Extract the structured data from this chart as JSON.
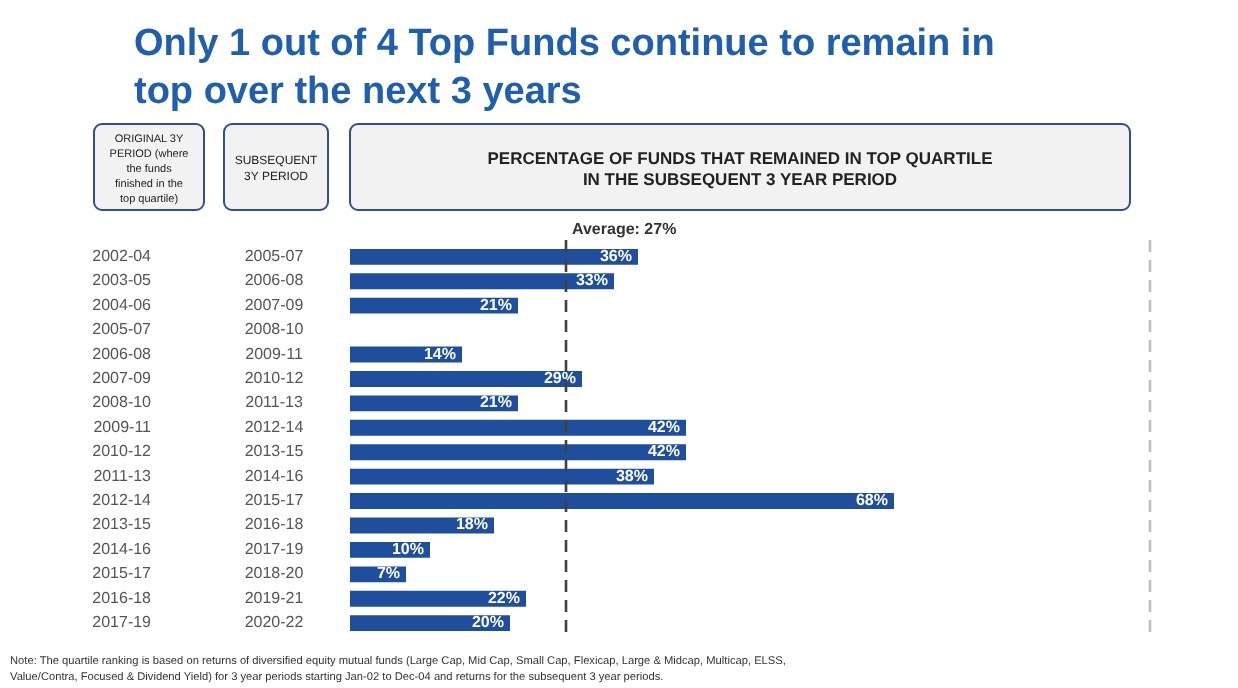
{
  "chart_data": {
    "type": "bar",
    "orientation": "horizontal",
    "title": "Only 1 out of 4 Top Funds continue to remain in top over the next 3 years",
    "ylabel": "ORIGINAL 3Y PERIOD (where the funds finished in the top quartile)",
    "y2label": "SUBSEQUENT 3Y PERIOD",
    "xlabel": "PERCENTAGE OF FUNDS THAT REMAINED IN TOP QUARTILE IN THE SUBSEQUENT 3 YEAR PERIOD",
    "categories": [
      "2002-04",
      "2003-05",
      "2004-06",
      "2005-07",
      "2006-08",
      "2007-09",
      "2008-10",
      "2009-11",
      "2010-12",
      "2011-13",
      "2012-14",
      "2013-15",
      "2014-16",
      "2015-17",
      "2016-18",
      "2017-19"
    ],
    "y2_categories": [
      "2005-07",
      "2006-08",
      "2007-09",
      "2008-10",
      "2009-11",
      "2010-12",
      "2011-13",
      "2012-14",
      "2013-15",
      "2014-16",
      "2015-17",
      "2016-18",
      "2017-19",
      "2018-20",
      "2019-21",
      "2020-22"
    ],
    "values": [
      36,
      33,
      21,
      null,
      14,
      29,
      21,
      42,
      42,
      38,
      68,
      18,
      10,
      7,
      22,
      20
    ],
    "value_labels": [
      "36%",
      "33%",
      "21%",
      null,
      "14%",
      "29%",
      "21%",
      "42%",
      "42%",
      "38%",
      "68%",
      "18%",
      "10%",
      "7%",
      "22%",
      "20%"
    ],
    "color": "#1f4e9c",
    "xlim": [
      0,
      100
    ],
    "tick_labels": "y",
    "ref_lines": [
      {
        "axis": "x",
        "value": 27,
        "label": "Average: 27%",
        "color": "#404040",
        "line_style": "dashed"
      },
      {
        "axis": "x",
        "value": 100,
        "label": null,
        "color": "#bfbfbf",
        "line_style": "dashed"
      }
    ],
    "annotations": [
      "Note: The quartile ranking is based on returns of diversified equity mutual funds (Large Cap, Mid Cap, Small Cap, Flexicap, Large & Midcap, Multicap, ELSS, Value/Contra, Focused & Dividend Yield) for 3 year periods starting Jan-02 to Dec-04 and returns for the subsequent 3 year periods."
    ]
  }
}
